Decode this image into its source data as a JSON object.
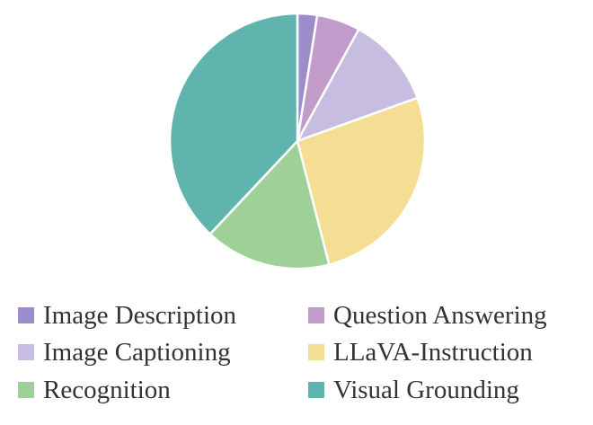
{
  "chart_data": {
    "type": "pie",
    "title": "",
    "start": "top",
    "direction": "clockwise",
    "slices": [
      {
        "label": "Image Description",
        "value": 2.5,
        "color": "#9c8cca"
      },
      {
        "label": "Question Answering",
        "value": 5.5,
        "color": "#c19ccb"
      },
      {
        "label": "Image Captioning",
        "value": 11.5,
        "color": "#c6bde1"
      },
      {
        "label": "LLaVA-Instruction",
        "value": 26.5,
        "color": "#f3de94"
      },
      {
        "label": "Recognition",
        "value": 16.0,
        "color": "#9ed197"
      },
      {
        "label": "Visual Grounding",
        "value": 38.0,
        "color": "#5fb5ad"
      }
    ],
    "legend": {
      "placement": "bottom",
      "columns": 2
    }
  }
}
